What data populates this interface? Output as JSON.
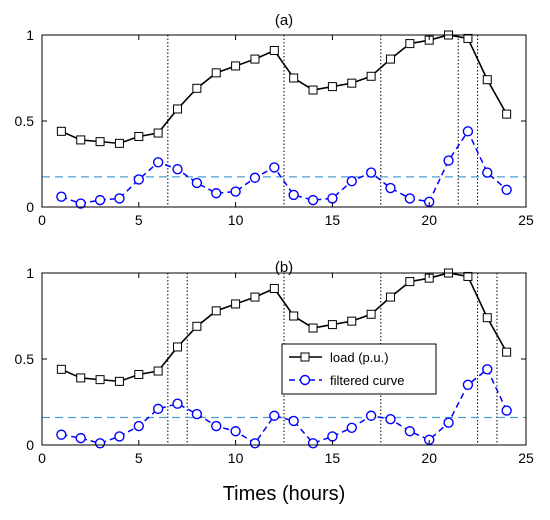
{
  "xlabel": "Times (hours)",
  "legend": {
    "placement": "center-right of panel (b)",
    "entries": [
      "load (p.u.)",
      "filtered curve"
    ]
  },
  "colors": {
    "load": "#000000",
    "filtered": "#0000ff",
    "threshold": "#4aa0d5",
    "divider": "#000000"
  },
  "chart_data": [
    {
      "type": "line",
      "title": "(a)",
      "xlim": [
        0,
        25
      ],
      "ylim": [
        0,
        1
      ],
      "xticks": [
        0,
        5,
        10,
        15,
        20,
        25
      ],
      "yticks": [
        0,
        0.5,
        1
      ],
      "x": [
        1,
        2,
        3,
        4,
        5,
        6,
        7,
        8,
        9,
        10,
        11,
        12,
        13,
        14,
        15,
        16,
        17,
        18,
        19,
        20,
        21,
        22,
        23,
        24
      ],
      "series": [
        {
          "name": "load (p.u.)",
          "marker": "square",
          "style": "solid",
          "values": [
            0.44,
            0.39,
            0.38,
            0.37,
            0.41,
            0.43,
            0.57,
            0.69,
            0.78,
            0.82,
            0.86,
            0.91,
            0.75,
            0.68,
            0.7,
            0.72,
            0.76,
            0.86,
            0.95,
            0.97,
            1.0,
            0.98,
            0.74,
            0.54
          ]
        },
        {
          "name": "filtered curve",
          "marker": "circle",
          "style": "dashed",
          "values": [
            0.06,
            0.02,
            0.04,
            0.05,
            0.16,
            0.26,
            0.22,
            0.14,
            0.08,
            0.09,
            0.17,
            0.23,
            0.07,
            0.04,
            0.05,
            0.15,
            0.2,
            0.11,
            0.05,
            0.03,
            0.27,
            0.44,
            0.2,
            0.1
          ]
        }
      ],
      "threshold": 0.175,
      "dividers": [
        6.5,
        12.5,
        17.5,
        21.5,
        22.5
      ]
    },
    {
      "type": "line",
      "title": "(b)",
      "xlim": [
        0,
        25
      ],
      "ylim": [
        0,
        1
      ],
      "xticks": [
        0,
        5,
        10,
        15,
        20,
        25
      ],
      "yticks": [
        0,
        0.5,
        1
      ],
      "x": [
        1,
        2,
        3,
        4,
        5,
        6,
        7,
        8,
        9,
        10,
        11,
        12,
        13,
        14,
        15,
        16,
        17,
        18,
        19,
        20,
        21,
        22,
        23,
        24
      ],
      "series": [
        {
          "name": "load (p.u.)",
          "marker": "square",
          "style": "solid",
          "values": [
            0.44,
            0.39,
            0.38,
            0.37,
            0.41,
            0.43,
            0.57,
            0.69,
            0.78,
            0.82,
            0.86,
            0.91,
            0.75,
            0.68,
            0.7,
            0.72,
            0.76,
            0.86,
            0.95,
            0.97,
            1.0,
            0.98,
            0.74,
            0.54
          ]
        },
        {
          "name": "filtered curve",
          "marker": "circle",
          "style": "dashed",
          "values": [
            0.06,
            0.04,
            0.01,
            0.05,
            0.11,
            0.21,
            0.24,
            0.18,
            0.11,
            0.08,
            0.01,
            0.17,
            0.14,
            0.01,
            0.05,
            0.1,
            0.17,
            0.15,
            0.08,
            0.03,
            0.13,
            0.35,
            0.44,
            0.2
          ]
        }
      ],
      "threshold": 0.16,
      "dividers": [
        6.5,
        7.5,
        12.5,
        17.5,
        22.5,
        23.5
      ]
    }
  ]
}
